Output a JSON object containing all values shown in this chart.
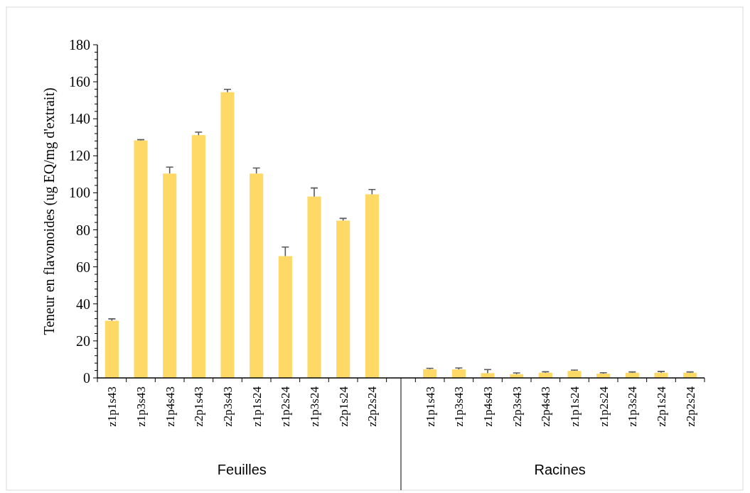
{
  "chart_data": {
    "type": "bar",
    "ylabel": "Teneur en flavonoides (ug EQ/mg d'extrait)",
    "categories": [
      "z1p1s43",
      "z1p3s43",
      "z1p4s43",
      "z2p1s43",
      "z2p3s43",
      "z1p1s24",
      "z1p2s24",
      "z1p3s24",
      "z2p1s24",
      "z2p2s24",
      null,
      "z1p1s43",
      "z1p3s43",
      "z1p4s43",
      "z2p3s43",
      "z2p4s43",
      "z1p1s24",
      "z1p2s24",
      "z1p3s24",
      "z2p1s24",
      "z2p2s24"
    ],
    "values": [
      30.9,
      128.3,
      110.4,
      131.2,
      154.4,
      110.4,
      65.8,
      98.0,
      85.0,
      99.2,
      null,
      4.7,
      4.6,
      2.6,
      2.0,
      2.8,
      3.8,
      2.3,
      2.8,
      2.8,
      2.8
    ],
    "errors": [
      [
        30.9,
        31.9
      ],
      [
        128.3,
        128.7
      ],
      [
        110.4,
        113.9
      ],
      [
        131.2,
        132.8
      ],
      [
        154.4,
        155.9
      ],
      [
        110.4,
        113.4
      ],
      [
        65.8,
        70.7
      ],
      [
        98.0,
        102.6
      ],
      [
        85.0,
        86.2
      ],
      [
        99.2,
        101.8
      ],
      null,
      [
        4.7,
        5.2
      ],
      [
        4.6,
        5.4
      ],
      [
        2.6,
        4.5
      ],
      [
        2.0,
        2.7
      ],
      [
        2.8,
        3.3
      ],
      [
        3.8,
        4.2
      ],
      [
        2.3,
        2.8
      ],
      [
        2.8,
        3.2
      ],
      [
        2.8,
        3.5
      ],
      [
        2.8,
        3.2
      ]
    ],
    "color": "#ffd966",
    "ylim": [
      0,
      180
    ],
    "yticks": [
      0,
      {
        "value": 4,
        "label": null
      },
      {
        "value": 8,
        "label": null
      },
      {
        "value": 12,
        "label": null
      },
      {
        "value": 16,
        "label": null
      },
      20,
      {
        "value": 24,
        "label": null
      },
      {
        "value": 28,
        "label": null
      },
      {
        "value": 32,
        "label": null
      },
      {
        "value": 36,
        "label": null
      },
      40,
      {
        "value": 44,
        "label": null
      },
      {
        "value": 48,
        "label": null
      },
      {
        "value": 52,
        "label": null
      },
      {
        "value": 56,
        "label": null
      },
      60,
      {
        "value": 64,
        "label": null
      },
      {
        "value": 68,
        "label": null
      },
      {
        "value": 72,
        "label": null
      },
      {
        "value": 76,
        "label": null
      },
      80,
      {
        "value": 84,
        "label": null
      },
      {
        "value": 88,
        "label": null
      },
      {
        "value": 92,
        "label": null
      },
      {
        "value": 96,
        "label": null
      },
      100,
      {
        "value": 104,
        "label": null
      },
      {
        "value": 108,
        "label": null
      },
      {
        "value": 112,
        "label": null
      },
      {
        "value": 116,
        "label": null
      },
      120,
      {
        "value": 124,
        "label": null
      },
      {
        "value": 128,
        "label": null
      },
      {
        "value": 132,
        "label": null
      },
      {
        "value": 136,
        "label": null
      },
      140,
      {
        "value": 144,
        "label": null
      },
      {
        "value": 148,
        "label": null
      },
      {
        "value": 152,
        "label": null
      },
      {
        "value": 156,
        "label": null
      },
      160,
      {
        "value": 164,
        "label": null
      },
      {
        "value": 168,
        "label": null
      },
      {
        "value": 172,
        "label": null
      },
      {
        "value": 176,
        "label": null
      },
      180
    ],
    "grid": false,
    "annotations": [
      "Feuilles",
      "Racines"
    ]
  }
}
